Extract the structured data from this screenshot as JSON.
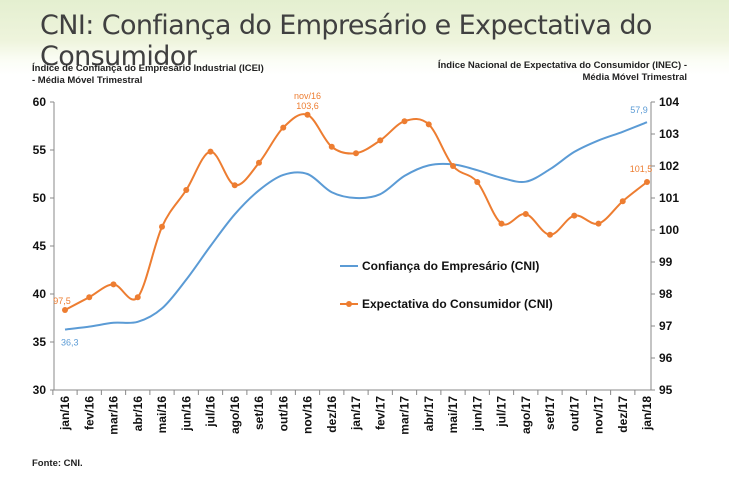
{
  "page": {
    "title": "CNI: Confiança do Empresário e Expectativa do Consumidor",
    "left_axis_title_1": "Índice de Confiança do Empresário Industrial (ICEI)",
    "left_axis_title_2": "- Média Móvel Trimestral",
    "right_axis_title_1": "Índice Nacional de Expectativa do Consumidor (INEC) -",
    "right_axis_title_2": "Média Móvel Trimestral",
    "source": "Fonte: CNI."
  },
  "chart_data": {
    "type": "line",
    "categories": [
      "jan/16",
      "fev/16",
      "mar/16",
      "abr/16",
      "mai/16",
      "jun/16",
      "jul/16",
      "ago/16",
      "set/16",
      "out/16",
      "nov/16",
      "dez/16",
      "jan/17",
      "fev/17",
      "mar/17",
      "abr/17",
      "mai/17",
      "jun/17",
      "jul/17",
      "ago/17",
      "set/17",
      "out/17",
      "nov/17",
      "dez/17",
      "jan/18"
    ],
    "y_left": {
      "range": [
        30,
        60
      ],
      "ticks": [
        "30",
        "35",
        "40",
        "45",
        "50",
        "55",
        "60"
      ]
    },
    "y_right": {
      "range": [
        95,
        104
      ],
      "ticks": [
        "95",
        "96",
        "97",
        "98",
        "99",
        "100",
        "101",
        "102",
        "103",
        "104"
      ]
    },
    "series": [
      {
        "name": "Confiança do Empresário (CNI)",
        "axis": "left",
        "color": "#5b9bd5",
        "markers": false,
        "values": [
          36.3,
          36.6,
          37.0,
          37.1,
          38.5,
          41.5,
          45.0,
          48.3,
          50.8,
          52.4,
          52.5,
          50.6,
          50.0,
          50.4,
          52.3,
          53.4,
          53.5,
          52.9,
          52.1,
          51.7,
          53.0,
          54.8,
          56.0,
          56.9,
          57.9
        ]
      },
      {
        "name": "Expectativa do Consumidor (CNI)",
        "axis": "right",
        "color": "#ed7d31",
        "markers": true,
        "values": [
          97.5,
          97.9,
          98.3,
          97.9,
          100.1,
          101.25,
          102.45,
          101.4,
          102.1,
          103.2,
          103.6,
          102.6,
          102.4,
          102.8,
          103.4,
          103.3,
          102.0,
          101.5,
          100.2,
          100.5,
          99.85,
          100.45,
          100.2,
          100.9,
          101.5
        ]
      }
    ],
    "annotations": [
      {
        "series": 1,
        "index": 0,
        "text": "97,5"
      },
      {
        "series": 0,
        "index": 0,
        "text": "36,3"
      },
      {
        "series": 1,
        "index": 10,
        "text": "nov/16"
      },
      {
        "series": 1,
        "index": 10,
        "text": "103,6"
      },
      {
        "series": 0,
        "index": 24,
        "text": "57,9"
      },
      {
        "series": 1,
        "index": 24,
        "text": "101,5"
      }
    ],
    "legend": "center",
    "grid": false
  }
}
